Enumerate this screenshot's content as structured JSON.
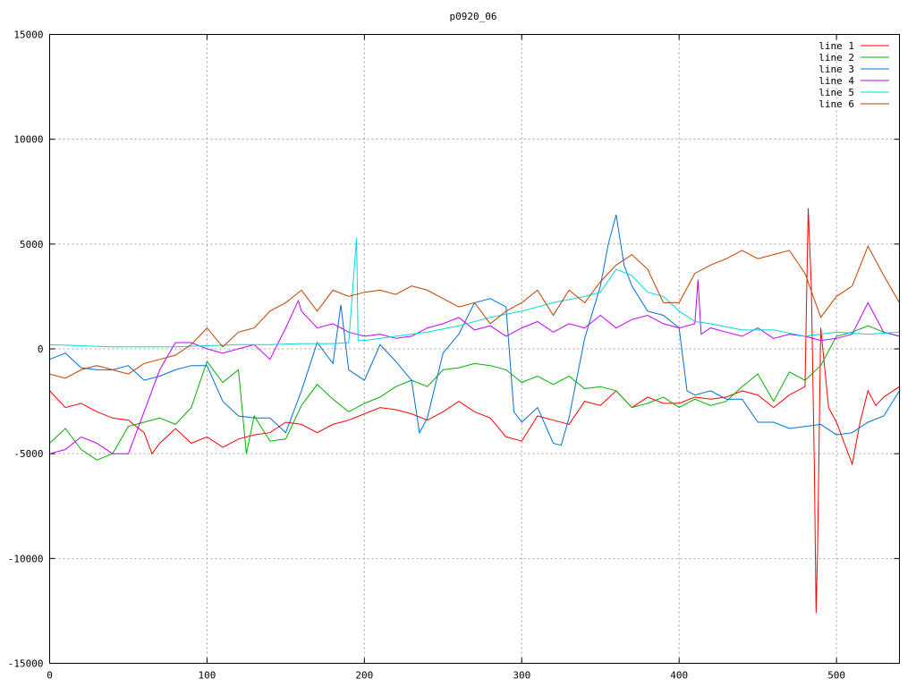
{
  "chart_data": {
    "type": "line",
    "title": "p0920_06",
    "xlabel": "",
    "ylabel": "",
    "xlim": [
      0,
      540
    ],
    "ylim": [
      -15000,
      15000
    ],
    "xticks": [
      0,
      100,
      200,
      300,
      400,
      500
    ],
    "yticks": [
      -15000,
      -10000,
      -5000,
      0,
      5000,
      10000,
      15000
    ],
    "grid": true,
    "legend_position": "top-right",
    "series": [
      {
        "name": "line 1",
        "color": "#ff0000",
        "x": [
          0,
          10,
          20,
          30,
          40,
          50,
          60,
          65,
          70,
          80,
          90,
          100,
          110,
          120,
          130,
          140,
          150,
          160,
          170,
          180,
          190,
          200,
          210,
          220,
          230,
          240,
          250,
          260,
          270,
          280,
          290,
          300,
          310,
          320,
          330,
          340,
          350,
          360,
          370,
          380,
          390,
          400,
          410,
          420,
          430,
          440,
          450,
          460,
          470,
          480,
          482,
          484,
          486,
          487,
          488,
          490,
          495,
          500,
          505,
          510,
          515,
          520,
          525,
          530,
          540
        ],
        "y": [
          -2000,
          -2800,
          -2600,
          -3000,
          -3300,
          -3400,
          -4000,
          -5000,
          -4500,
          -3800,
          -4500,
          -4200,
          -4700,
          -4300,
          -4100,
          -4000,
          -3500,
          -3600,
          -4000,
          -3600,
          -3400,
          -3100,
          -2800,
          -2900,
          -3100,
          -3400,
          -3000,
          -2500,
          -3000,
          -3300,
          -4200,
          -4400,
          -3200,
          -3400,
          -3600,
          -2500,
          -2700,
          -2000,
          -2800,
          -2300,
          -2600,
          -2600,
          -2300,
          -2400,
          -2300,
          -2000,
          -2200,
          -2800,
          -2200,
          -1800,
          6700,
          3000,
          -6000,
          -12600,
          -9500,
          1000,
          -2800,
          -3500,
          -4500,
          -5500,
          -3500,
          -2000,
          -2700,
          -2300,
          -1800
        ]
      },
      {
        "name": "line 2",
        "color": "#00b000",
        "x": [
          0,
          10,
          20,
          30,
          40,
          50,
          60,
          70,
          80,
          90,
          100,
          110,
          120,
          125,
          130,
          140,
          150,
          160,
          170,
          180,
          190,
          200,
          210,
          220,
          230,
          240,
          250,
          260,
          270,
          280,
          290,
          300,
          310,
          320,
          330,
          340,
          350,
          360,
          370,
          380,
          390,
          400,
          410,
          420,
          430,
          440,
          450,
          460,
          470,
          480,
          490,
          500,
          510,
          520,
          530,
          540
        ],
        "y": [
          -4500,
          -3800,
          -4800,
          -5300,
          -5000,
          -3700,
          -3500,
          -3300,
          -3600,
          -2800,
          -600,
          -1600,
          -1000,
          -5000,
          -3200,
          -4400,
          -4300,
          -2700,
          -1700,
          -2400,
          -3000,
          -2600,
          -2300,
          -1800,
          -1500,
          -1800,
          -1000,
          -900,
          -700,
          -800,
          -1000,
          -1600,
          -1300,
          -1700,
          -1300,
          -1900,
          -1800,
          -2000,
          -2800,
          -2600,
          -2300,
          -2800,
          -2400,
          -2700,
          -2500,
          -1800,
          -1200,
          -2500,
          -1100,
          -1500,
          -800,
          600,
          800,
          1100,
          800,
          600
        ]
      },
      {
        "name": "line 3",
        "color": "#0070d0",
        "x": [
          0,
          10,
          20,
          30,
          40,
          50,
          60,
          70,
          80,
          90,
          100,
          110,
          120,
          130,
          140,
          150,
          160,
          170,
          180,
          185,
          190,
          200,
          210,
          220,
          230,
          235,
          240,
          250,
          260,
          270,
          280,
          290,
          295,
          300,
          310,
          320,
          325,
          330,
          340,
          350,
          355,
          360,
          365,
          370,
          380,
          390,
          400,
          405,
          410,
          420,
          430,
          440,
          450,
          460,
          470,
          480,
          490,
          500,
          510,
          520,
          530,
          540
        ],
        "y": [
          -500,
          -200,
          -900,
          -1000,
          -1000,
          -800,
          -1500,
          -1300,
          -1000,
          -800,
          -800,
          -2500,
          -3200,
          -3300,
          -3300,
          -4000,
          -2000,
          300,
          -700,
          2100,
          -1000,
          -1500,
          200,
          -600,
          -1500,
          -4000,
          -3300,
          -200,
          700,
          2200,
          2400,
          2000,
          -3000,
          -3500,
          -2800,
          -4500,
          -4600,
          -3300,
          500,
          3000,
          5000,
          6400,
          4000,
          3000,
          1800,
          1600,
          1000,
          -2000,
          -2200,
          -2000,
          -2400,
          -2400,
          -3500,
          -3500,
          -3800,
          -3700,
          -3600,
          -4100,
          -4000,
          -3500,
          -3200,
          -2000
        ]
      },
      {
        "name": "line 4",
        "color": "#c000ff",
        "x": [
          0,
          10,
          20,
          30,
          40,
          50,
          60,
          70,
          80,
          90,
          100,
          110,
          120,
          130,
          140,
          150,
          158,
          160,
          170,
          180,
          190,
          200,
          210,
          220,
          230,
          240,
          250,
          260,
          270,
          280,
          290,
          300,
          310,
          320,
          330,
          340,
          350,
          360,
          370,
          380,
          390,
          400,
          410,
          412,
          414,
          420,
          430,
          440,
          450,
          460,
          470,
          480,
          490,
          500,
          510,
          520,
          530,
          540
        ],
        "y": [
          -5000,
          -4800,
          -4200,
          -4500,
          -5000,
          -5000,
          -3000,
          -1000,
          300,
          300,
          0,
          -200,
          0,
          200,
          -500,
          1000,
          2300,
          1800,
          1000,
          1200,
          800,
          600,
          700,
          500,
          600,
          1000,
          1200,
          1500,
          900,
          1100,
          600,
          1000,
          1300,
          800,
          1200,
          1000,
          1600,
          1000,
          1400,
          1600,
          1200,
          1000,
          1200,
          3300,
          700,
          1000,
          800,
          600,
          1000,
          500,
          700,
          600,
          400,
          500,
          700,
          2200,
          800,
          600
        ]
      },
      {
        "name": "line 5",
        "color": "#00d8d8",
        "x": [
          0,
          20,
          40,
          60,
          80,
          100,
          120,
          140,
          160,
          180,
          190,
          195,
          196,
          200,
          220,
          240,
          260,
          280,
          300,
          320,
          340,
          350,
          360,
          370,
          380,
          390,
          400,
          410,
          420,
          440,
          460,
          480,
          500,
          520,
          540
        ],
        "y": [
          200,
          150,
          100,
          100,
          100,
          150,
          200,
          200,
          250,
          250,
          300,
          5300,
          400,
          400,
          600,
          800,
          1100,
          1500,
          1800,
          2200,
          2500,
          2700,
          3800,
          3500,
          2700,
          2500,
          1800,
          1300,
          1200,
          900,
          900,
          600,
          800,
          700,
          800
        ]
      },
      {
        "name": "line 6",
        "color": "#c04000",
        "x": [
          0,
          10,
          20,
          30,
          40,
          50,
          60,
          70,
          80,
          90,
          100,
          110,
          120,
          130,
          140,
          150,
          160,
          170,
          180,
          190,
          200,
          210,
          220,
          230,
          240,
          250,
          260,
          270,
          280,
          290,
          300,
          310,
          320,
          330,
          340,
          350,
          360,
          370,
          380,
          390,
          400,
          410,
          420,
          430,
          440,
          450,
          460,
          470,
          480,
          490,
          500,
          510,
          520,
          530,
          540
        ],
        "y": [
          -1200,
          -1400,
          -1000,
          -800,
          -1000,
          -1200,
          -700,
          -500,
          -300,
          200,
          1000,
          100,
          800,
          1000,
          1800,
          2200,
          2800,
          1800,
          2800,
          2500,
          2700,
          2800,
          2600,
          3000,
          2800,
          2400,
          2000,
          2200,
          1200,
          1800,
          2200,
          2800,
          1600,
          2800,
          2200,
          3200,
          4000,
          4500,
          3800,
          2200,
          2200,
          3600,
          4000,
          4300,
          4700,
          4300,
          4500,
          4700,
          3600,
          1500,
          2500,
          3000,
          4900,
          3500,
          2200
        ]
      }
    ]
  }
}
